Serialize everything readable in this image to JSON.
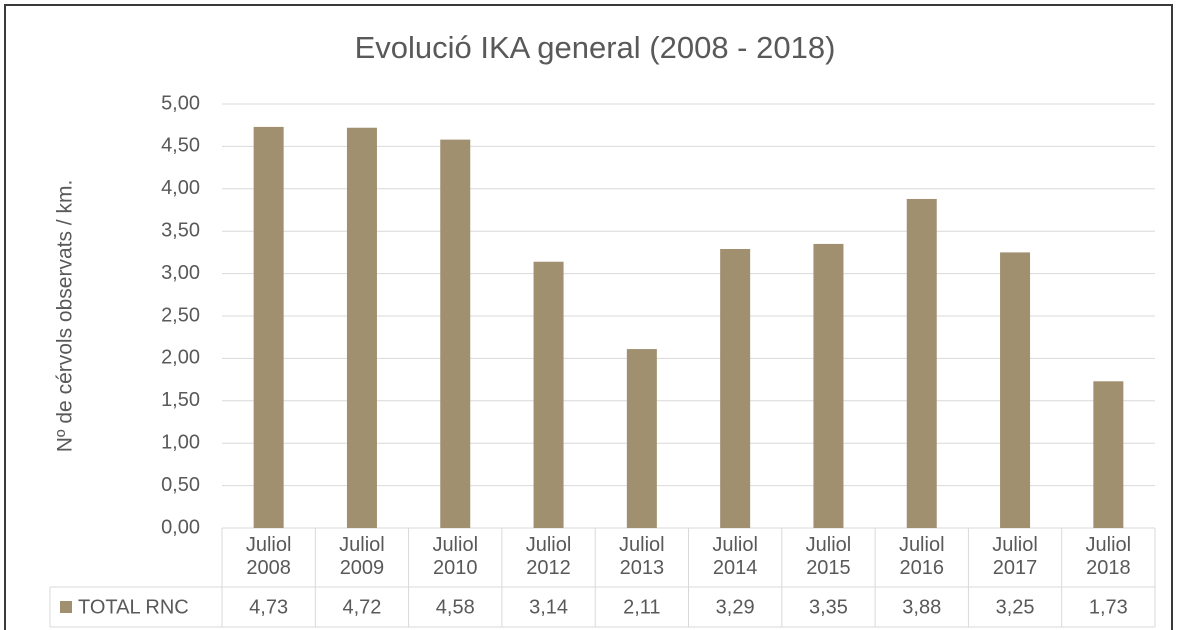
{
  "chart_data": {
    "type": "bar",
    "title": "Evolució IKA general (2008 - 2018)",
    "y_label": "Nº de cérvols observats / km.",
    "categories": [
      "Juliol 2008",
      "Juliol 2009",
      "Juliol 2010",
      "Juliol 2012",
      "Juliol 2013",
      "Juliol 2014",
      "Juliol 2015",
      "Juliol 2016",
      "Juliol 2017",
      "Juliol 2018"
    ],
    "series": [
      {
        "name": "TOTAL RNC",
        "color": "#a09070",
        "values": [
          4.73,
          4.72,
          4.58,
          3.14,
          2.11,
          3.29,
          3.35,
          3.88,
          3.25,
          1.73
        ],
        "value_labels": [
          "4,73",
          "4,72",
          "4,58",
          "3,14",
          "2,11",
          "3,29",
          "3,35",
          "3,88",
          "3,25",
          "1,73"
        ]
      }
    ],
    "ylim": [
      0,
      5
    ],
    "yticks": [
      {
        "value": 0,
        "label": "0,00"
      },
      {
        "value": 0.5,
        "label": "0,50"
      },
      {
        "value": 1,
        "label": "1,00"
      },
      {
        "value": 1.5,
        "label": "1,50"
      },
      {
        "value": 2,
        "label": "2,00"
      },
      {
        "value": 2.5,
        "label": "2,50"
      },
      {
        "value": 3,
        "label": "3,00"
      },
      {
        "value": 3.5,
        "label": "3,50"
      },
      {
        "value": 4,
        "label": "4,00"
      },
      {
        "value": 4.5,
        "label": "4,50"
      },
      {
        "value": 5,
        "label": "5,00"
      }
    ],
    "grid": true
  }
}
